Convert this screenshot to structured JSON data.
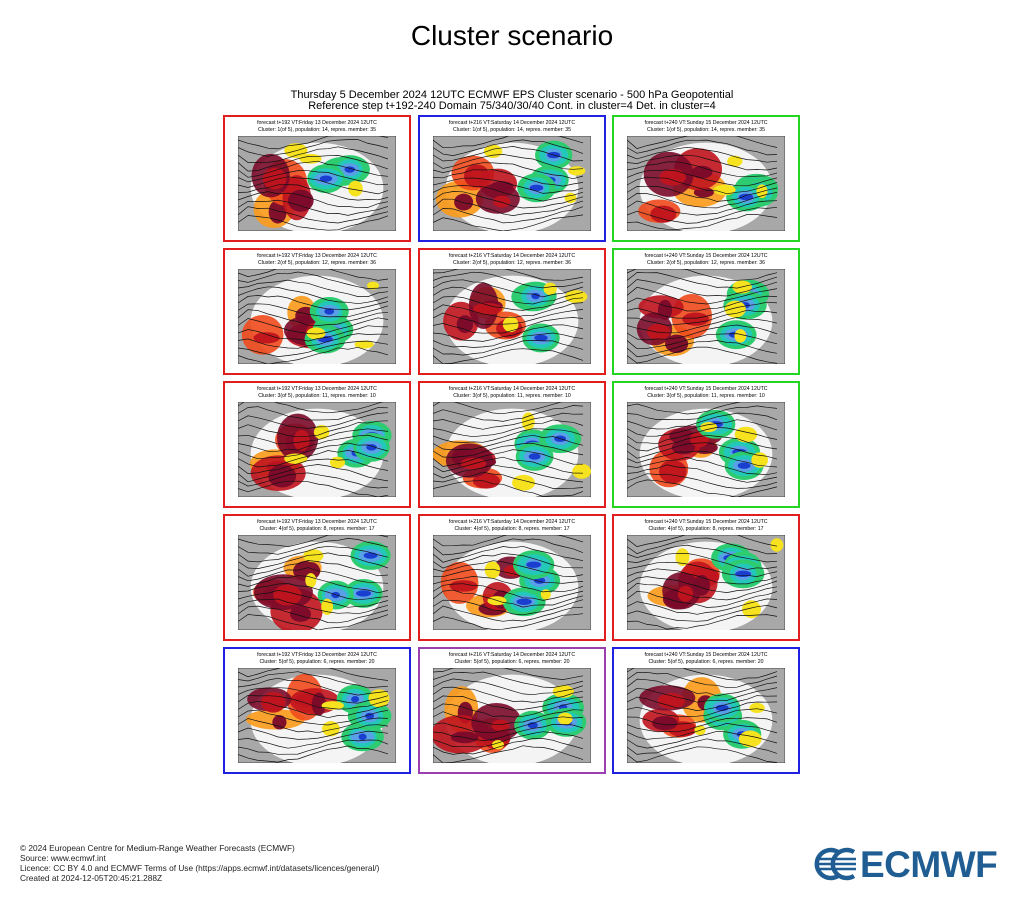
{
  "title": "Cluster scenario",
  "subtitle_line1": "Thursday 5 December 2024 12UTC ECMWF EPS Cluster scenario - 500 hPa Geopotential",
  "subtitle_line2": "Reference step t+192-240 Domain 75/340/30/40 Cont. in cluster=4 Det. in cluster=4",
  "colors": {
    "red_border": "#e01e1e",
    "blue_border": "#2020e0",
    "green_border": "#22d622",
    "purple_border": "#9b3fb0",
    "logo": "#1f5d92"
  },
  "panels": [
    {
      "line1": "forecast t+192 VT:Friday 13 December 2024 12UTC",
      "line2": "Cluster: 1(of 5), population: 14, repres. member: 35",
      "border": "red"
    },
    {
      "line1": "forecast t+216 VT:Saturday 14 December 2024 12UTC",
      "line2": "Cluster: 1(of 5), population: 14, repres. member: 35",
      "border": "blue"
    },
    {
      "line1": "forecast t+240 VT:Sunday 15 December 2024 12UTC",
      "line2": "Cluster: 1(of 5), population: 14, repres. member: 35",
      "border": "green"
    },
    {
      "line1": "forecast t+192 VT:Friday 13 December 2024 12UTC",
      "line2": "Cluster: 2(of 5), population: 12, repres. member: 36",
      "border": "red"
    },
    {
      "line1": "forecast t+216 VT:Saturday 14 December 2024 12UTC",
      "line2": "Cluster: 2(of 5), population: 12, repres. member: 36",
      "border": "red"
    },
    {
      "line1": "forecast t+240 VT:Sunday 15 December 2024 12UTC",
      "line2": "Cluster: 2(of 5), population: 12, repres. member: 36",
      "border": "green"
    },
    {
      "line1": "forecast t+192 VT:Friday 13 December 2024 12UTC",
      "line2": "Cluster: 3(of 5), population: 11, repres. member: 10",
      "border": "red"
    },
    {
      "line1": "forecast t+216 VT:Saturday 14 December 2024 12UTC",
      "line2": "Cluster: 3(of 5), population: 11, repres. member: 10",
      "border": "red"
    },
    {
      "line1": "forecast t+240 VT:Sunday 15 December 2024 12UTC",
      "line2": "Cluster: 3(of 5), population: 11, repres. member: 10",
      "border": "green"
    },
    {
      "line1": "forecast t+192 VT:Friday 13 December 2024 12UTC",
      "line2": "Cluster: 4(of 5), population: 8, repres. member: 17",
      "border": "red"
    },
    {
      "line1": "forecast t+216 VT:Saturday 14 December 2024 12UTC",
      "line2": "Cluster: 4(of 5), population: 8, repres. member: 17",
      "border": "red"
    },
    {
      "line1": "forecast t+240 VT:Sunday 15 December 2024 12UTC",
      "line2": "Cluster: 4(of 5), population: 8, repres. member: 17",
      "border": "red"
    },
    {
      "line1": "forecast t+192 VT:Friday 13 December 2024 12UTC",
      "line2": "Cluster: 5(of 5), population: 6, repres. member: 20",
      "border": "blue"
    },
    {
      "line1": "forecast t+216 VT:Saturday 14 December 2024 12UTC",
      "line2": "Cluster: 5(of 5), population: 6, repres. member: 20",
      "border": "purple"
    },
    {
      "line1": "forecast t+240 VT:Sunday 15 December 2024 12UTC",
      "line2": "Cluster: 5(of 5), population: 6, repres. member: 20",
      "border": "blue"
    }
  ],
  "footer": {
    "copyright": "© 2024 European Centre for Medium-Range Weather Forecasts (ECMWF)",
    "source": "Source: www.ecmwf.int",
    "licence": "Licence: CC BY 4.0 and ECMWF Terms of Use (https://apps.ecmwf.int/datasets/licences/general/)",
    "created": "Created at 2024-12-05T20:45:21.288Z"
  },
  "logo_text": "ECMWF"
}
